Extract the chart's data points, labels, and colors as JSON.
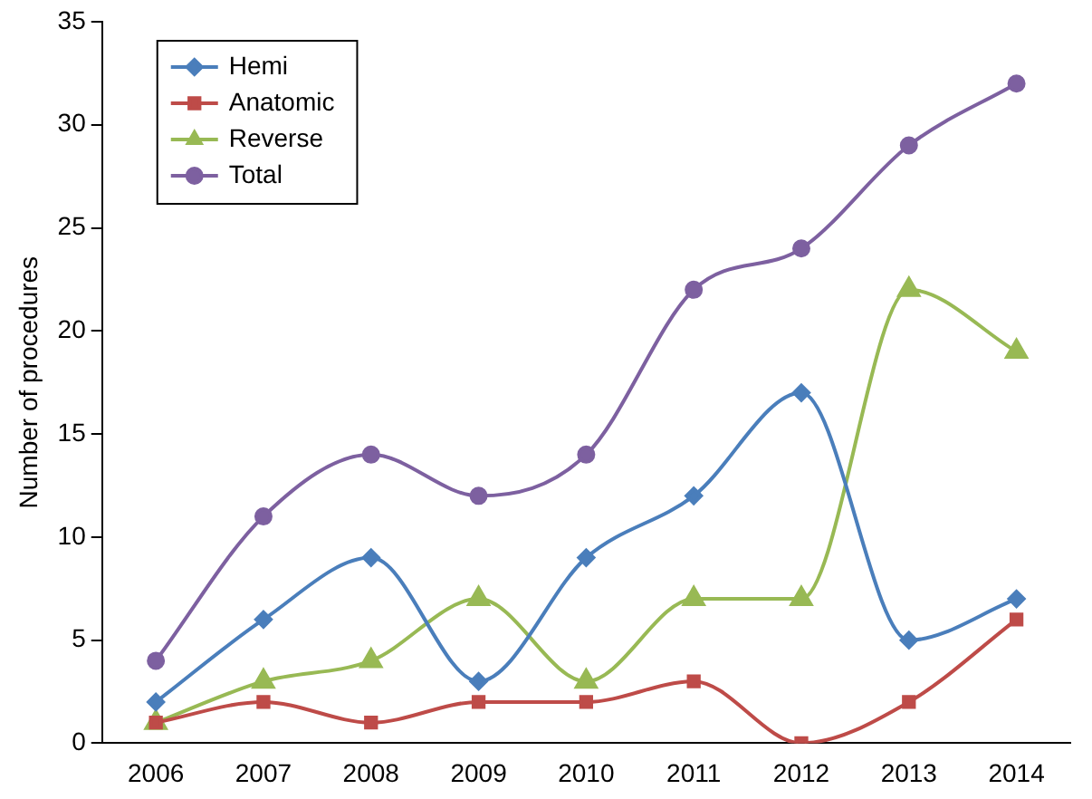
{
  "chart_data": {
    "type": "line",
    "ylabel": "Number of procedures",
    "categories": [
      "2006",
      "2007",
      "2008",
      "2009",
      "2010",
      "2011",
      "2012",
      "2013",
      "2014"
    ],
    "series": [
      {
        "name": "Hemi",
        "color": "#4a7ebb",
        "marker": "diamond",
        "values": [
          2,
          6,
          9,
          3,
          9,
          12,
          17,
          5,
          7
        ]
      },
      {
        "name": "Anatomic",
        "color": "#be4b48",
        "marker": "square",
        "values": [
          1,
          2,
          1,
          2,
          2,
          3,
          0,
          2,
          6
        ]
      },
      {
        "name": "Reverse",
        "color": "#98b954",
        "marker": "triangle",
        "values": [
          1,
          3,
          4,
          7,
          3,
          7,
          7,
          22,
          19
        ]
      },
      {
        "name": "Total",
        "color": "#7d60a0",
        "marker": "circle",
        "values": [
          4,
          11,
          14,
          12,
          14,
          22,
          24,
          29,
          32
        ]
      }
    ],
    "ylim": [
      0,
      35
    ],
    "yticks": [
      0,
      5,
      10,
      15,
      20,
      25,
      30,
      35
    ],
    "grid": false,
    "legend": "top left",
    "line_style": "solid"
  }
}
